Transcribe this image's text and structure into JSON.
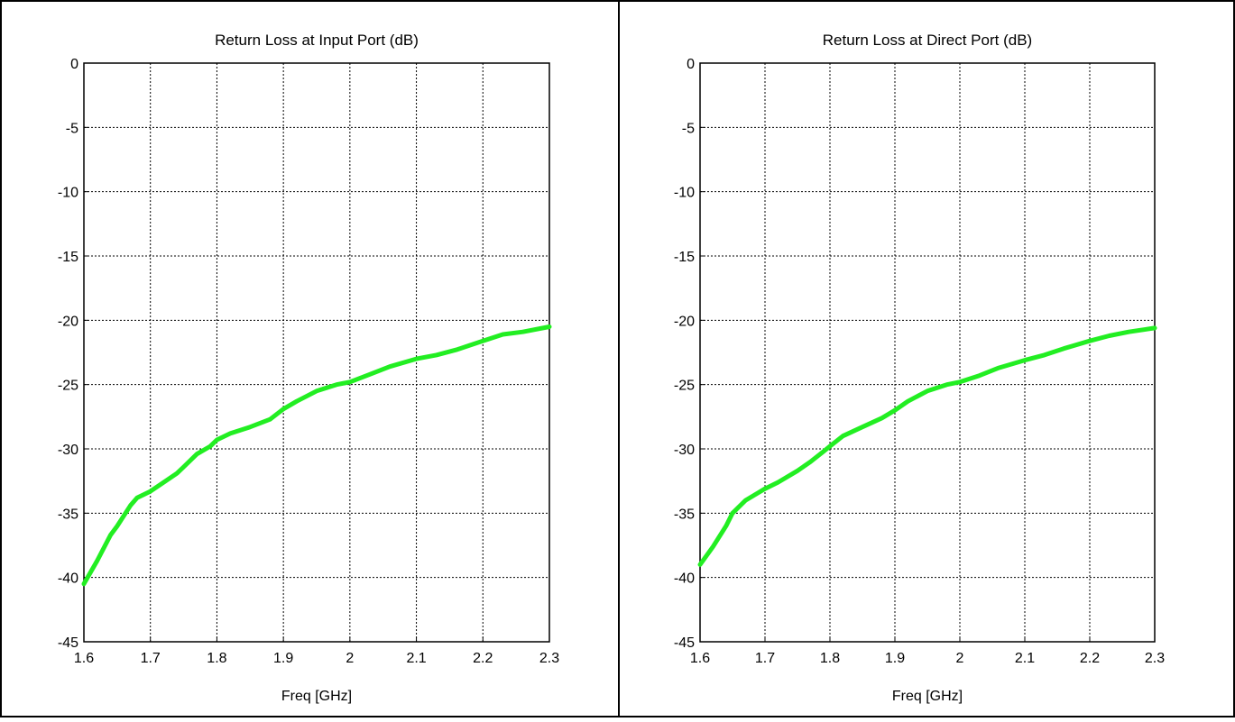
{
  "chart_data": [
    {
      "type": "line",
      "title": "Return Loss at Input Port (dB)",
      "xlabel": "Freq [GHz]",
      "ylabel": "",
      "xlim": [
        1.6,
        2.3
      ],
      "ylim": [
        -45,
        0
      ],
      "xticks": [
        "1.6",
        "1.7",
        "1.8",
        "1.9",
        "2",
        "2.1",
        "2.2",
        "2.3"
      ],
      "yticks": [
        "0",
        "-5",
        "-10",
        "-15",
        "-20",
        "-25",
        "-30",
        "-35",
        "-40",
        "-45"
      ],
      "grid": true,
      "line_color": "#22ee22",
      "series": [
        {
          "x": [
            1.6,
            1.62,
            1.64,
            1.65,
            1.67,
            1.68,
            1.7,
            1.72,
            1.74,
            1.75,
            1.77,
            1.79,
            1.8,
            1.82,
            1.85,
            1.88,
            1.9,
            1.92,
            1.95,
            1.98,
            2.0,
            2.03,
            2.06,
            2.1,
            2.13,
            2.16,
            2.2,
            2.23,
            2.26,
            2.3
          ],
          "y": [
            -40.5,
            -38.7,
            -36.7,
            -36.0,
            -34.4,
            -33.8,
            -33.3,
            -32.6,
            -31.9,
            -31.4,
            -30.4,
            -29.8,
            -29.3,
            -28.8,
            -28.3,
            -27.7,
            -26.9,
            -26.3,
            -25.5,
            -25.0,
            -24.8,
            -24.2,
            -23.6,
            -23.0,
            -22.7,
            -22.3,
            -21.6,
            -21.1,
            -20.9,
            -20.5
          ]
        }
      ]
    },
    {
      "type": "line",
      "title": "Return Loss at Direct Port (dB)",
      "xlabel": "Freq [GHz]",
      "ylabel": "",
      "xlim": [
        1.6,
        2.3
      ],
      "ylim": [
        -45,
        0
      ],
      "xticks": [
        "1.6",
        "1.7",
        "1.8",
        "1.9",
        "2",
        "2.1",
        "2.2",
        "2.3"
      ],
      "yticks": [
        "0",
        "-5",
        "-10",
        "-15",
        "-20",
        "-25",
        "-30",
        "-35",
        "-40",
        "-45"
      ],
      "grid": true,
      "line_color": "#22ee22",
      "series": [
        {
          "x": [
            1.6,
            1.62,
            1.64,
            1.65,
            1.67,
            1.69,
            1.7,
            1.72,
            1.75,
            1.77,
            1.79,
            1.8,
            1.82,
            1.85,
            1.88,
            1.9,
            1.92,
            1.95,
            1.98,
            2.0,
            2.03,
            2.06,
            2.1,
            2.13,
            2.16,
            2.2,
            2.23,
            2.26,
            2.3
          ],
          "y": [
            -39.0,
            -37.6,
            -36.0,
            -35.0,
            -34.0,
            -33.4,
            -33.1,
            -32.6,
            -31.7,
            -31.0,
            -30.2,
            -29.8,
            -29.0,
            -28.3,
            -27.6,
            -27.0,
            -26.3,
            -25.5,
            -25.0,
            -24.8,
            -24.3,
            -23.7,
            -23.1,
            -22.7,
            -22.2,
            -21.6,
            -21.2,
            -20.9,
            -20.6
          ]
        }
      ]
    }
  ]
}
